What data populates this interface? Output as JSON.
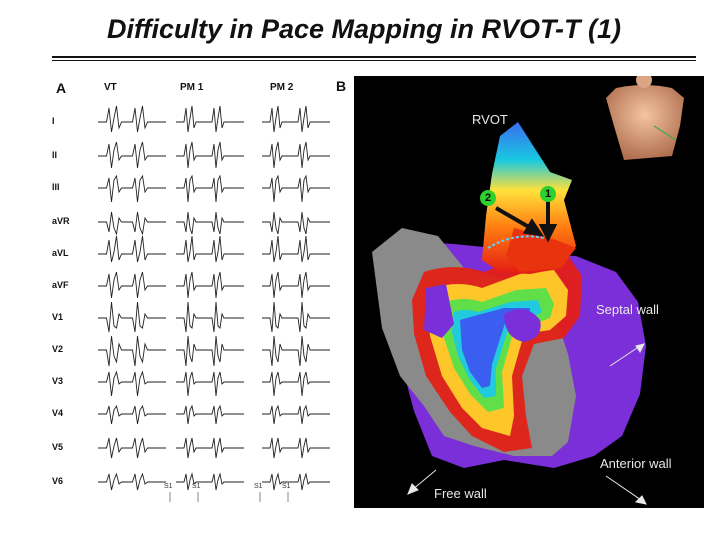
{
  "title": "Difficulty in Pace Mapping in RVOT-T (1)",
  "panel_a": {
    "label": "A",
    "columns": [
      "VT",
      "PM 1",
      "PM 2"
    ],
    "leads": [
      "I",
      "II",
      "III",
      "aVR",
      "aVL",
      "aVF",
      "V1",
      "V2",
      "V3",
      "V4",
      "V5",
      "V6"
    ],
    "stim_labels": [
      "S1",
      "S1",
      "S1",
      "S1"
    ]
  },
  "panel_b": {
    "label": "B",
    "rvot_label": "RVOT",
    "marker_1": "1",
    "marker_2": "2",
    "septal_wall": "Septal wall",
    "anterior_wall": "Anterior wall",
    "free_wall": "Free wall"
  },
  "colors": {
    "background_map": "#000000",
    "violet_tissue": "#7b2fd8",
    "gray_tissue": "#8a8a8a",
    "marker_green": "#2ed12e"
  }
}
